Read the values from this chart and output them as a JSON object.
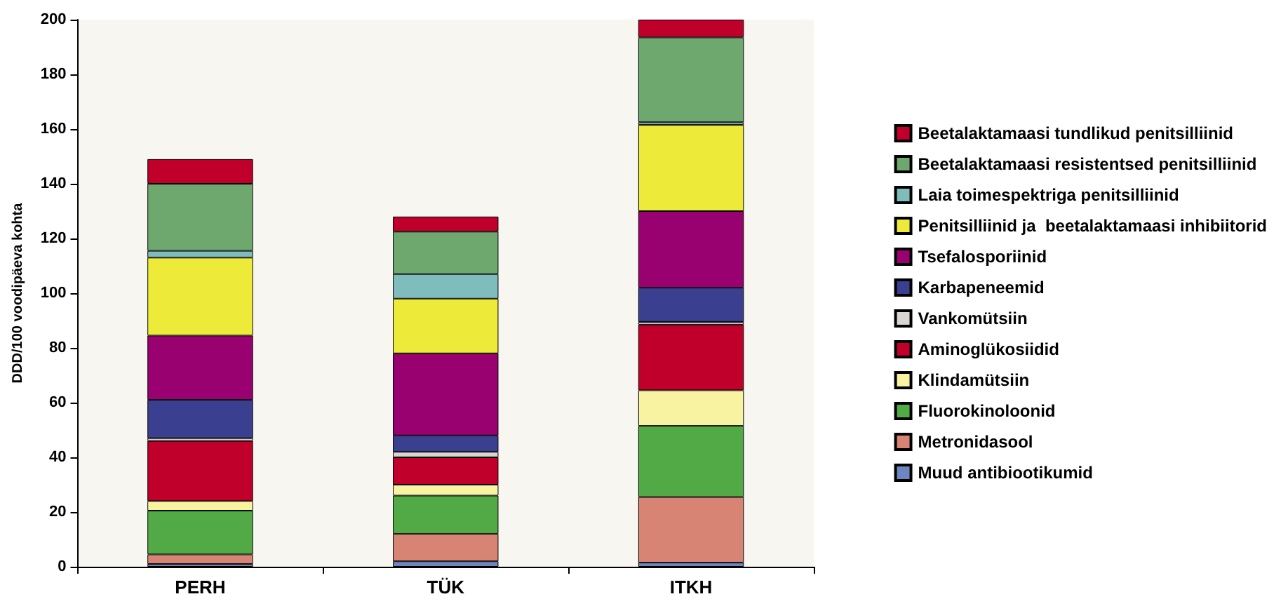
{
  "chart_data": {
    "type": "bar",
    "stacked": true,
    "ylabel": "DDD/100 voodipäeva kohta",
    "categories": [
      "PERH",
      "TÜK",
      "ITKH"
    ],
    "ylim": [
      0,
      200
    ],
    "yticks": [
      0,
      20,
      40,
      60,
      80,
      100,
      120,
      140,
      160,
      180,
      200
    ],
    "grid": false,
    "legend": "right",
    "series": [
      {
        "name": "Muud antibiootikumid",
        "color": "#6e86c0",
        "values": [
          1,
          2,
          1.5
        ]
      },
      {
        "name": "Metronidasool",
        "color": "#d88474",
        "values": [
          3.5,
          10,
          24
        ]
      },
      {
        "name": "Fluorokinoloonid",
        "color": "#52aa46",
        "values": [
          16,
          14,
          26
        ]
      },
      {
        "name": "Klindamütsiin",
        "color": "#f8f3a0",
        "values": [
          3.5,
          4,
          13
        ]
      },
      {
        "name": "Aminoglükosiidid",
        "color": "#c0002a",
        "values": [
          22,
          10,
          24
        ]
      },
      {
        "name": "Vankomütsiin",
        "color": "#d8d5d2",
        "values": [
          1,
          2,
          1
        ]
      },
      {
        "name": "Karbapeneemid",
        "color": "#3a3f8f",
        "values": [
          14,
          6,
          12.5
        ]
      },
      {
        "name": "Tsefalosporiinid",
        "color": "#990070",
        "values": [
          23.5,
          30,
          28
        ]
      },
      {
        "name": "Penitsilliinid ja  beetalaktamaasi inhibiitorid",
        "color": "#eeea3a",
        "values": [
          28.5,
          20,
          31.5
        ]
      },
      {
        "name": "Laia toimespektriga penitsilliinid",
        "color": "#7fbcbc",
        "values": [
          2.5,
          9,
          1
        ]
      },
      {
        "name": "Beetalaktamaasi resistentsed penitsilliinid",
        "color": "#6fa86f",
        "values": [
          24.5,
          15.5,
          31
        ]
      },
      {
        "name": "Beetalaktamaasi tundlikud penitsilliinid",
        "color": "#c0002a",
        "values": [
          9,
          5.5,
          6.5
        ]
      }
    ]
  }
}
